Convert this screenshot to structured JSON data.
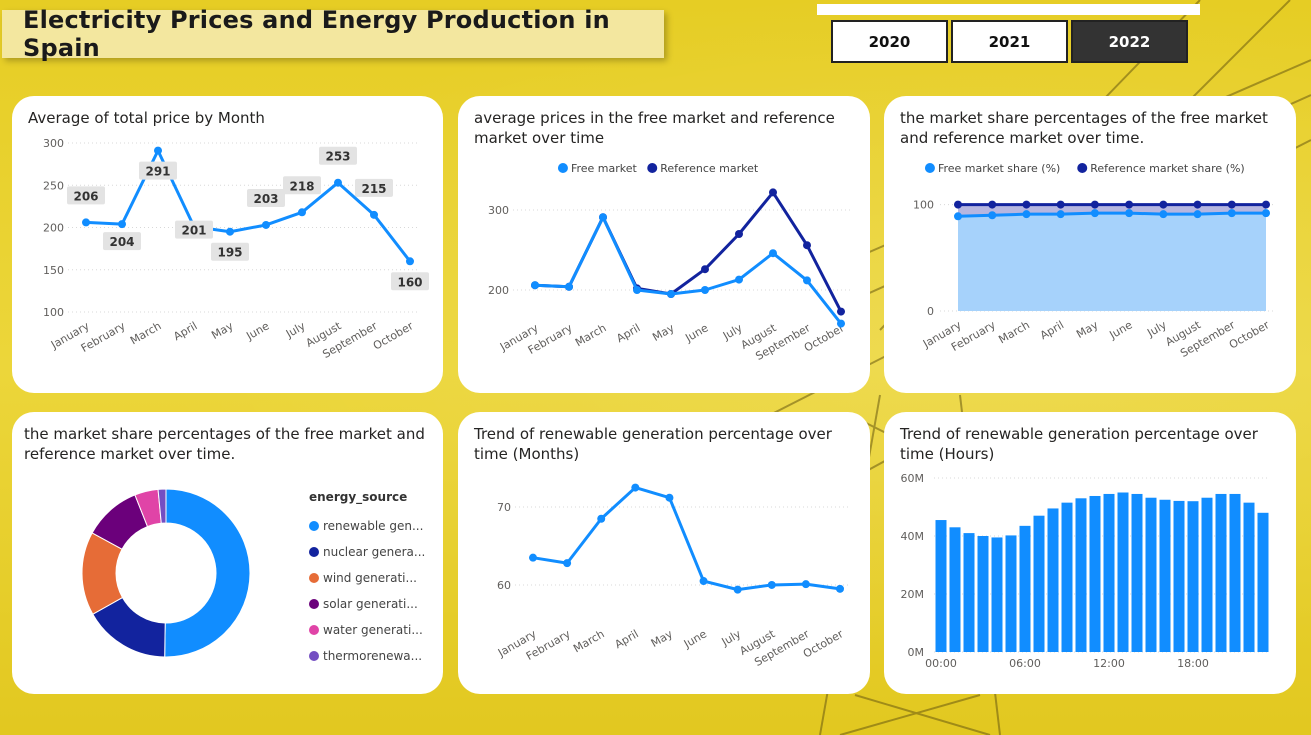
{
  "header": {
    "title": "Electricity Prices and Energy Production in Spain",
    "years": [
      "2020",
      "2021",
      "2022"
    ],
    "selected_year": "2022"
  },
  "colors": {
    "free_market": "#118dff",
    "reference_market": "#12239e",
    "area_fill": "#a6d2fb",
    "donut": [
      "#118dff",
      "#12239e",
      "#e66c37",
      "#6b007b",
      "#e044a7",
      "#744ec2"
    ]
  },
  "chart_data": [
    {
      "id": "avg-total-price",
      "type": "line",
      "title": "Average of total price by Month",
      "categories": [
        "January",
        "February",
        "March",
        "April",
        "May",
        "June",
        "July",
        "August",
        "September",
        "October"
      ],
      "series": [
        {
          "values": [
            206,
            204,
            291,
            201,
            195,
            203,
            218,
            253,
            215,
            160
          ]
        }
      ],
      "data_labels": [
        "206",
        "204",
        "291",
        "201",
        "195",
        "203",
        "218",
        "253",
        "215",
        "160"
      ],
      "ylim": [
        100,
        300
      ],
      "yticks": [
        "100",
        "150",
        "200",
        "250",
        "300"
      ],
      "grid": true
    },
    {
      "id": "free-vs-reference-prices",
      "type": "line",
      "title": "average prices in the free market and reference market over time",
      "categories": [
        "January",
        "February",
        "March",
        "April",
        "May",
        "June",
        "July",
        "August",
        "September",
        "October"
      ],
      "series": [
        {
          "name": "Free market",
          "values": [
            206,
            204,
            291,
            200,
            195,
            200,
            213,
            246,
            212,
            158
          ]
        },
        {
          "name": "Reference market",
          "values": [
            206,
            204,
            291,
            202,
            195,
            226,
            270,
            322,
            256,
            173
          ]
        }
      ],
      "ylim": [
        170,
        330
      ],
      "yticks": [
        "200",
        "300"
      ],
      "legend": "top-center",
      "grid": true
    },
    {
      "id": "market-share",
      "type": "area",
      "title": "the market share percentages of the free market and reference market over time.",
      "categories": [
        "January",
        "February",
        "March",
        "April",
        "May",
        "June",
        "July",
        "August",
        "September",
        "October"
      ],
      "series": [
        {
          "name": "Free market share (%)",
          "values": [
            89,
            90,
            91,
            91,
            92,
            92,
            91,
            91,
            92,
            92
          ]
        },
        {
          "name": "Reference market share (%)",
          "values": [
            100,
            100,
            100,
            100,
            100,
            100,
            100,
            100,
            100,
            100
          ]
        }
      ],
      "ylim": [
        0,
        125
      ],
      "yticks": [
        "0",
        "100"
      ],
      "legend": "top-center",
      "grid": true
    },
    {
      "id": "energy-source-donut",
      "type": "pie",
      "title": "the market share percentages of the free market and reference market over time.",
      "legend_title": "energy_source",
      "labels": [
        "renewable gen...",
        "nuclear genera...",
        "wind generati...",
        "solar generati...",
        "water generati...",
        "thermorenewa..."
      ],
      "values": [
        50,
        16.5,
        16,
        11,
        4.5,
        1.5
      ],
      "legend": "right"
    },
    {
      "id": "renewable-months",
      "type": "line",
      "title": "Trend of renewable generation percentage over time (Months)",
      "categories": [
        "January",
        "February",
        "March",
        "April",
        "May",
        "June",
        "July",
        "August",
        "September",
        "October"
      ],
      "series": [
        {
          "values": [
            63.5,
            62.8,
            68.5,
            72.5,
            71.2,
            60.5,
            59.4,
            60.0,
            60.1,
            59.5
          ]
        }
      ],
      "ylim": [
        55.5,
        74.5
      ],
      "yticks": [
        "60",
        "70"
      ],
      "grid": true
    },
    {
      "id": "renewable-hours",
      "type": "bar",
      "title": "Trend of renewable generation percentage over time (Hours)",
      "categories": [
        "00:00",
        "01:00",
        "02:00",
        "03:00",
        "04:00",
        "05:00",
        "06:00",
        "07:00",
        "08:00",
        "09:00",
        "10:00",
        "11:00",
        "12:00",
        "13:00",
        "14:00",
        "15:00",
        "16:00",
        "17:00",
        "18:00",
        "19:00",
        "20:00",
        "21:00",
        "22:00",
        "23:00"
      ],
      "values": [
        45.5,
        43,
        41,
        40,
        39.5,
        40.2,
        43.5,
        47,
        49.5,
        51.5,
        53,
        53.8,
        54.5,
        55,
        54.5,
        53.2,
        52.5,
        52.1,
        52,
        53.2,
        54.5,
        54.5,
        51.5,
        48
      ],
      "ylim": [
        0,
        60
      ],
      "yticks": [
        "0M",
        "20M",
        "40M",
        "60M"
      ],
      "xticks": [
        "00:00",
        "06:00",
        "12:00",
        "18:00"
      ],
      "grid": true
    }
  ]
}
